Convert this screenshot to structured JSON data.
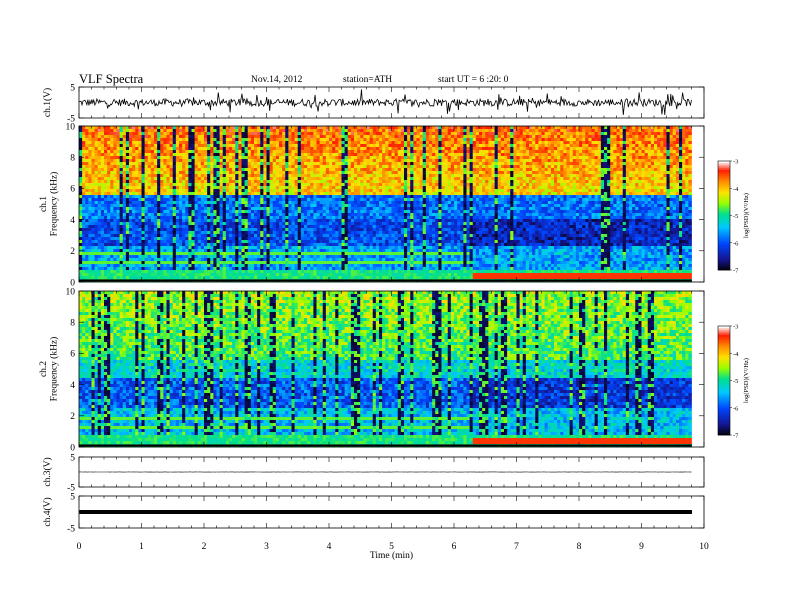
{
  "header": {
    "title": "VLF  Spectra",
    "date": "Nov.14, 2012",
    "station": "station=ATH",
    "start": "start  UT  =   6  :20: 0"
  },
  "chart_data": [
    {
      "type": "line",
      "panel": "ch1",
      "ylabel": "ch.1(V)",
      "ylim": [
        -5,
        5
      ],
      "yticks": [
        "5",
        "-5"
      ],
      "xlim": [
        0,
        10
      ],
      "trace": {
        "baseline": 0,
        "noise_amplitude_V": 1.2,
        "color": "#000000"
      }
    },
    {
      "type": "heatmap",
      "panel": "ch1-spectrogram",
      "ylabel": "ch.1\nFrequency  (kHz)",
      "ylim": [
        0,
        10
      ],
      "yticks": [
        "0",
        "2",
        "4",
        "6",
        "8",
        "10"
      ],
      "xlim": [
        0,
        9.8
      ],
      "colorbar": {
        "label": "log(PSD)(V²/Hz)",
        "range": [
          -7,
          -3
        ],
        "ticks": [
          "-3",
          "-4",
          "-5",
          "-6",
          "-7"
        ],
        "colors": [
          "#000000",
          "#1a1aa0",
          "#0050ff",
          "#00c8ff",
          "#00e08c",
          "#a0ff00",
          "#ffe000",
          "#ff8c00",
          "#ff2000",
          "#ffffff"
        ]
      },
      "regime_change_min": 6.3,
      "high_band_khz": [
        5.5,
        10
      ],
      "low_band_khz": [
        0,
        5.5
      ]
    },
    {
      "type": "heatmap",
      "panel": "ch2-spectrogram",
      "ylabel": "ch.2\nFrequency  (kHz)",
      "ylim": [
        0,
        10
      ],
      "yticks": [
        "0",
        "2",
        "4",
        "6",
        "8",
        "10"
      ],
      "xlim": [
        0,
        9.8
      ],
      "colorbar": {
        "label": "log(PSD)(V²/Hz)",
        "range": [
          -7,
          -3
        ],
        "ticks": [
          "-3",
          "-4",
          "-5",
          "-6",
          "-7"
        ],
        "colors": [
          "#000000",
          "#1a1aa0",
          "#0050ff",
          "#00c8ff",
          "#00e08c",
          "#a0ff00",
          "#ffe000",
          "#ff8c00",
          "#ff2000",
          "#ffffff"
        ]
      },
      "regime_change_min": 6.3
    },
    {
      "type": "line",
      "panel": "ch3",
      "ylabel": "ch.3(V)",
      "ylim": [
        -5,
        5
      ],
      "yticks": [
        "5",
        "-5"
      ],
      "xlim": [
        0,
        10
      ],
      "trace": {
        "baseline": 0,
        "noise_amplitude_V": 0.05,
        "color": "#000000"
      }
    },
    {
      "type": "line",
      "panel": "ch4",
      "ylabel": "ch.4(V)",
      "ylim": [
        -5,
        5
      ],
      "yticks": [
        "5",
        "-5"
      ],
      "xlim": [
        0,
        10
      ],
      "trace": {
        "baseline": 0,
        "noise_amplitude_V": 0.25,
        "color": "#000000"
      }
    }
  ],
  "xaxis": {
    "label": "Time  (min)",
    "ticks": [
      "0",
      "1",
      "2",
      "3",
      "4",
      "5",
      "6",
      "7",
      "8",
      "9",
      "10"
    ]
  }
}
